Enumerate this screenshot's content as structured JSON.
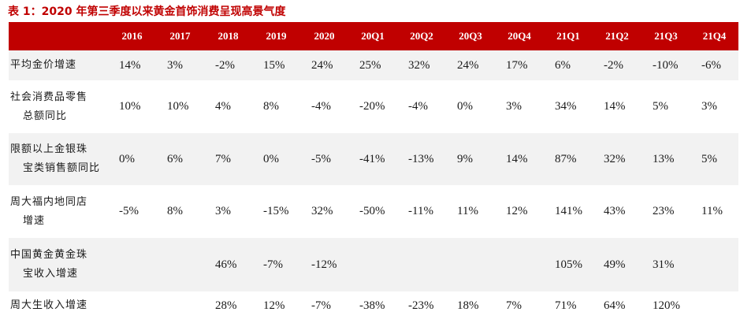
{
  "title": "表 1：2020 年第三季度以来黄金首饰消费呈现高景气度",
  "columns": [
    "2016",
    "2017",
    "2018",
    "2019",
    "2020",
    "20Q1",
    "20Q2",
    "20Q3",
    "20Q4",
    "21Q1",
    "21Q2",
    "21Q3",
    "21Q4"
  ],
  "rows": [
    {
      "label": [
        "平均金价增速"
      ],
      "values": [
        "14%",
        "3%",
        "-2%",
        "15%",
        "24%",
        "25%",
        "32%",
        "24%",
        "17%",
        "6%",
        "-2%",
        "-10%",
        "-6%"
      ]
    },
    {
      "label": [
        "社会消费品零售",
        "总额同比"
      ],
      "values": [
        "10%",
        "10%",
        "4%",
        "8%",
        "-4%",
        "-20%",
        "-4%",
        "0%",
        "3%",
        "34%",
        "14%",
        "5%",
        "3%"
      ]
    },
    {
      "label": [
        "限额以上金银珠",
        "宝类销售额同比"
      ],
      "values": [
        "0%",
        "6%",
        "7%",
        "0%",
        "-5%",
        "-41%",
        "-13%",
        "9%",
        "14%",
        "87%",
        "32%",
        "13%",
        "5%"
      ]
    },
    {
      "label": [
        "周大福内地同店",
        "增速"
      ],
      "values": [
        "-5%",
        "8%",
        "3%",
        "-15%",
        "32%",
        "-50%",
        "-11%",
        "11%",
        "12%",
        "141%",
        "43%",
        "23%",
        "11%"
      ]
    },
    {
      "label": [
        "中国黄金黄金珠",
        "宝收入增速"
      ],
      "values": [
        "",
        "",
        "46%",
        "-7%",
        "-12%",
        "",
        "",
        "",
        "",
        "105%",
        "49%",
        "31%",
        ""
      ]
    },
    {
      "label": [
        "周大生收入增速"
      ],
      "values": [
        "",
        "",
        "28%",
        "12%",
        "-7%",
        "-38%",
        "-23%",
        "18%",
        "7%",
        "71%",
        "64%",
        "120%",
        ""
      ]
    }
  ]
}
